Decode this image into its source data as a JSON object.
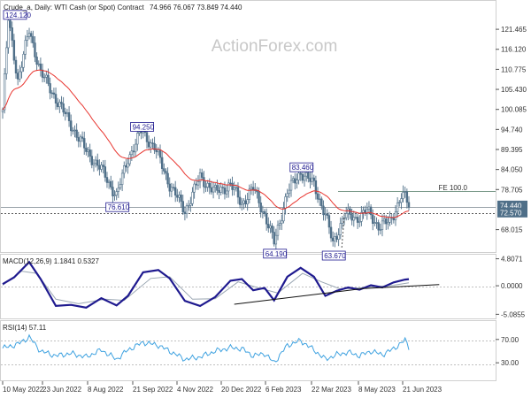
{
  "header": {
    "instrument": "Crude_a, Daily:  WTI Cash (or Spot) Contract",
    "ohlc": "74.966 76.067 73.849 74.440"
  },
  "watermark": "ActionForex.com",
  "colors": {
    "candle": "#4f6f88",
    "ma": "#e8342e",
    "macd_line": "#1f1a8f",
    "macd_signal": "#9aa6b2",
    "rsi": "#3fa2e0",
    "price_tag": "#4f6f88"
  },
  "chart_data": [
    {
      "type": "candlestick",
      "panel": "price",
      "title": "Crude_a, Daily:  WTI Cash (or Spot) Contract",
      "ylim": [
        63.2,
        125.5
      ],
      "y_ticks": [
        "121.465",
        "116.120",
        "110.775",
        "105.430",
        "100.085",
        "94.740",
        "89.395",
        "84.050",
        "78.705",
        "74.440",
        "72.570",
        "68.015"
      ],
      "price_tags": [
        {
          "label": "74.440",
          "value": 74.44
        },
        {
          "label": "72.570",
          "value": 72.57
        }
      ],
      "x_ticks": [
        "10 May 2022",
        "23 Jun 2022",
        "8 Aug 2022",
        "21 Sep 2022",
        "4 Nov 2022",
        "20 Dec 2022",
        "6 Feb 2023",
        "22 Mar 2023",
        "8 May 2023",
        "21 Jun 2023"
      ],
      "key_points": [
        {
          "label": "124.120",
          "x": 3,
          "y": 124.12
        },
        {
          "label": "76.610",
          "x": 60,
          "y": 76.61
        },
        {
          "label": "94.250",
          "x": 73,
          "y": 94.25
        },
        {
          "label": "64.190",
          "x": 143,
          "y": 64.19
        },
        {
          "label": "83.460",
          "x": 157,
          "y": 83.46
        },
        {
          "label": "63.670",
          "x": 174,
          "y": 63.67
        },
        {
          "label": "74.440",
          "x": 214,
          "y": 74.44
        }
      ],
      "annotations": [
        {
          "label": "FE 100.0",
          "value": 77.88
        }
      ],
      "series": [
        {
          "name": "price"
        },
        {
          "name": "moving-average"
        }
      ]
    },
    {
      "type": "line",
      "panel": "macd",
      "title": "MACD(12,26,9) 1.1841 0.5327",
      "ylim": [
        -5.5,
        4.9
      ],
      "y_ticks": [
        "4.8071",
        "0.0000",
        "-5.0855"
      ],
      "series": [
        {
          "name": "MACD",
          "points": [
            [
              0,
              0.3
            ],
            [
              6,
              1.5
            ],
            [
              14,
              4.2
            ],
            [
              20,
              1.2
            ],
            [
              28,
              -3.6
            ],
            [
              36,
              -3.4
            ],
            [
              44,
              -3.9
            ],
            [
              52,
              -2.2
            ],
            [
              60,
              -3.5
            ],
            [
              66,
              -1.8
            ],
            [
              74,
              2.4
            ],
            [
              82,
              2.8
            ],
            [
              88,
              1.3
            ],
            [
              96,
              -2.7
            ],
            [
              104,
              -3.6
            ],
            [
              112,
              -2.0
            ],
            [
              120,
              0.9
            ],
            [
              126,
              1.2
            ],
            [
              132,
              -0.8
            ],
            [
              138,
              -0.4
            ],
            [
              143,
              -2.6
            ],
            [
              150,
              1.6
            ],
            [
              157,
              3.2
            ],
            [
              164,
              1.6
            ],
            [
              170,
              -1.8
            ],
            [
              176,
              -0.9
            ],
            [
              182,
              -0.3
            ],
            [
              188,
              -0.7
            ],
            [
              194,
              0.1
            ],
            [
              200,
              -0.3
            ],
            [
              206,
              0.6
            ],
            [
              212,
              1.1
            ],
            [
              214,
              1.18
            ]
          ]
        },
        {
          "name": "signal",
          "points": [
            [
              0,
              0.1
            ],
            [
              10,
              2.6
            ],
            [
              18,
              2.2
            ],
            [
              28,
              -2.4
            ],
            [
              40,
              -3.2
            ],
            [
              54,
              -2.4
            ],
            [
              64,
              -2.6
            ],
            [
              78,
              1.3
            ],
            [
              88,
              1.6
            ],
            [
              100,
              -2.4
            ],
            [
              112,
              -2.3
            ],
            [
              124,
              0.7
            ],
            [
              134,
              -0.3
            ],
            [
              145,
              -1.3
            ],
            [
              158,
              2.2
            ],
            [
              168,
              0.7
            ],
            [
              178,
              -0.6
            ],
            [
              192,
              -0.3
            ],
            [
              206,
              0.1
            ],
            [
              214,
              0.53
            ]
          ]
        },
        {
          "name": "trendline",
          "points": [
            [
              122,
              -3.3
            ],
            [
              190,
              -0.5
            ],
            [
              230,
              0.2
            ]
          ]
        }
      ]
    },
    {
      "type": "line",
      "panel": "rsi",
      "title": "RSI(14) 57.11",
      "ylim": [
        0,
        100
      ],
      "y_ticks": [
        "70.00",
        "30.00"
      ],
      "series": [
        {
          "name": "RSI",
          "points": [
            [
              0,
              55
            ],
            [
              8,
              62
            ],
            [
              14,
              74
            ],
            [
              20,
              50
            ],
            [
              28,
              42
            ],
            [
              36,
              46
            ],
            [
              44,
              40
            ],
            [
              52,
              52
            ],
            [
              60,
              36
            ],
            [
              66,
              52
            ],
            [
              74,
              65
            ],
            [
              82,
              60
            ],
            [
              88,
              50
            ],
            [
              96,
              36
            ],
            [
              104,
              40
            ],
            [
              112,
              50
            ],
            [
              120,
              56
            ],
            [
              126,
              54
            ],
            [
              132,
              42
            ],
            [
              138,
              46
            ],
            [
              143,
              30
            ],
            [
              150,
              60
            ],
            [
              157,
              68
            ],
            [
              164,
              52
            ],
            [
              170,
              36
            ],
            [
              176,
              44
            ],
            [
              182,
              48
            ],
            [
              188,
              42
            ],
            [
              194,
              50
            ],
            [
              200,
              44
            ],
            [
              206,
              54
            ],
            [
              212,
              69
            ],
            [
              214,
              57.11
            ]
          ]
        }
      ]
    }
  ]
}
